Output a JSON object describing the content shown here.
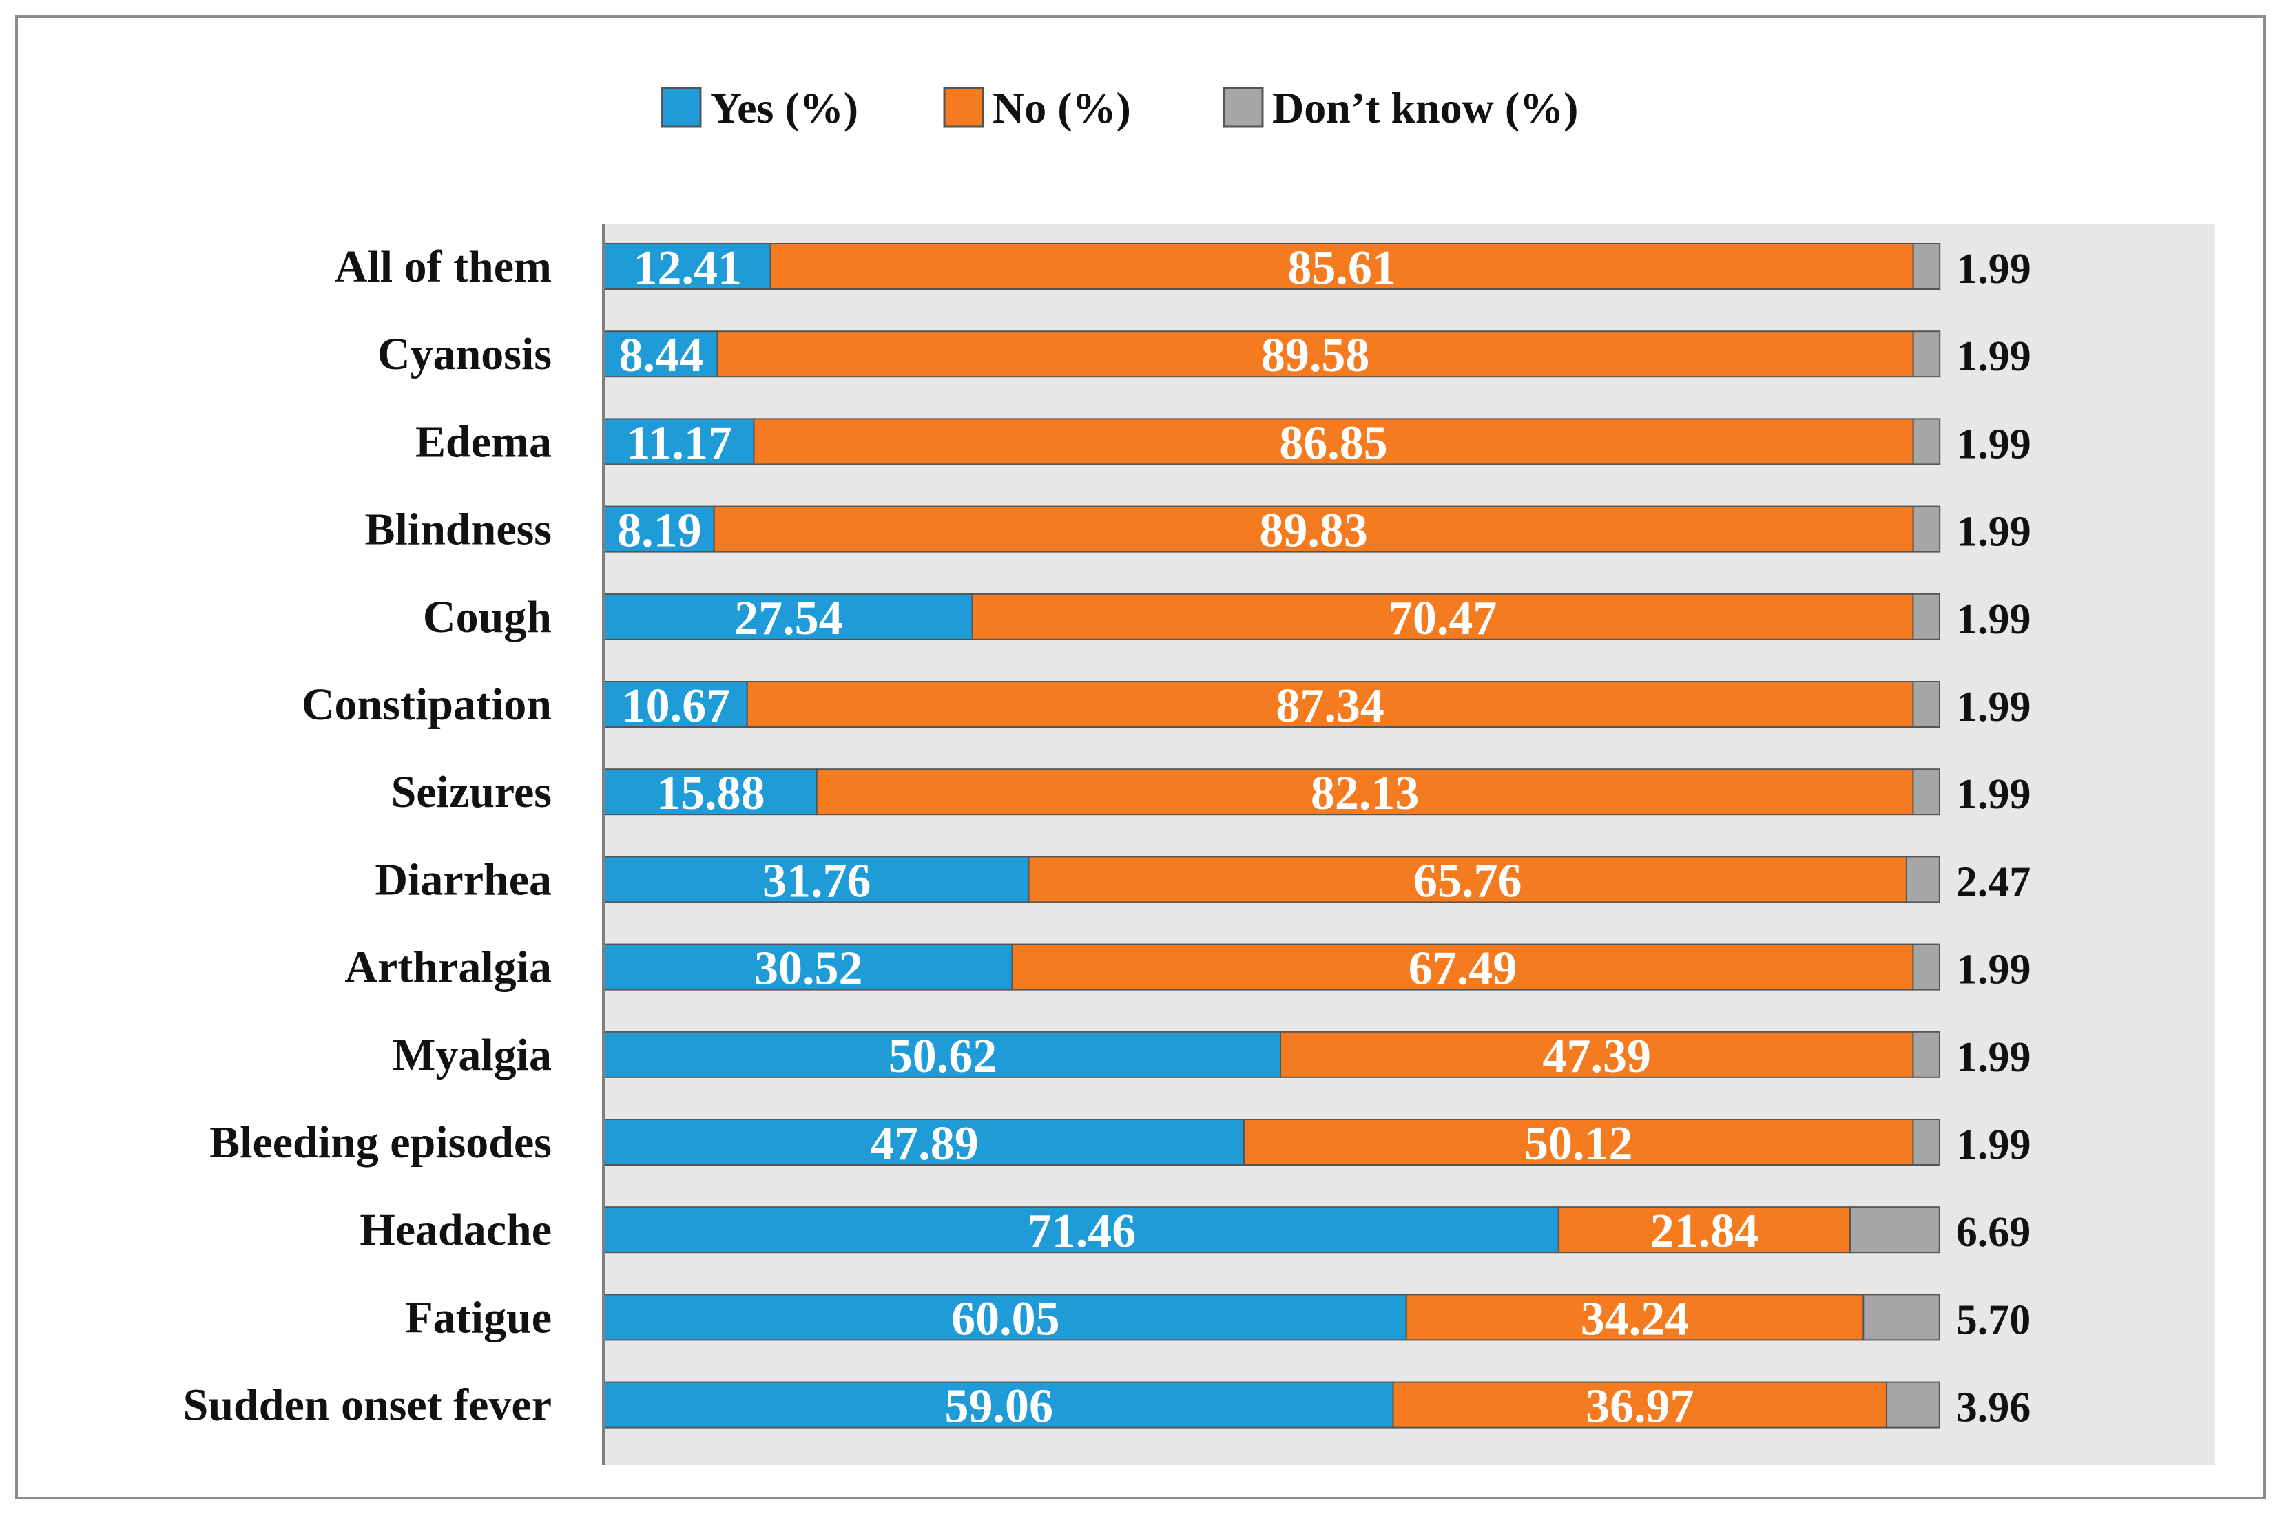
{
  "chart_data": {
    "type": "bar",
    "orientation": "horizontal",
    "stacked": true,
    "title": "",
    "xlabel": "",
    "ylabel": "",
    "xlim": [
      0,
      100
    ],
    "grid": false,
    "legend_position": "top-center",
    "categories": [
      "All of them",
      "Cyanosis",
      "Edema",
      "Blindness",
      "Cough",
      "Constipation",
      "Seizures",
      "Diarrhea",
      "Arthralgia",
      "Myalgia",
      "Bleeding episodes",
      "Headache",
      "Fatigue",
      "Sudden onset fever"
    ],
    "series": [
      {
        "name": "Yes (%)",
        "color": "#1f9bd7",
        "values": [
          12.41,
          8.44,
          11.17,
          8.19,
          27.54,
          10.67,
          15.88,
          31.76,
          30.52,
          50.62,
          47.89,
          71.46,
          60.05,
          59.06
        ],
        "labels": [
          "12.41",
          "8.44",
          "11.17",
          "8.19",
          "27.54",
          "10.67",
          "15.88",
          "31.76",
          "30.52",
          "50.62",
          "47.89",
          "71.46",
          "60.05",
          "59.06"
        ]
      },
      {
        "name": "No (%)",
        "color": "#f47b20",
        "values": [
          85.61,
          89.58,
          86.85,
          89.83,
          70.47,
          87.34,
          82.13,
          65.76,
          67.49,
          47.39,
          50.12,
          21.84,
          34.24,
          36.97
        ],
        "labels": [
          "85.61",
          "89.58",
          "86.85",
          "89.83",
          "70.47",
          "87.34",
          "82.13",
          "65.76",
          "67.49",
          "47.39",
          "50.12",
          "21.84",
          "34.24",
          "36.97"
        ]
      },
      {
        "name": "Don’t know (%)",
        "color": "#a6a6a6",
        "values": [
          1.99,
          1.99,
          1.99,
          1.99,
          1.99,
          1.99,
          1.99,
          2.47,
          1.99,
          1.99,
          1.99,
          6.69,
          5.7,
          3.96
        ],
        "labels": [
          "1.99",
          "1.99",
          "1.99",
          "1.99",
          "1.99",
          "1.99",
          "1.99",
          "2.47",
          "1.99",
          "1.99",
          "1.99",
          "6.69",
          "5.70",
          "3.96"
        ]
      }
    ]
  }
}
